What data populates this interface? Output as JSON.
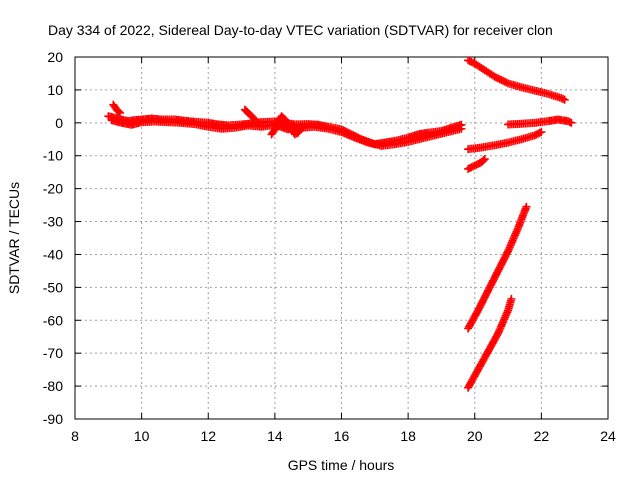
{
  "chart_data": {
    "type": "scatter",
    "title": "Day 334 of 2022, Sidereal Day-to-day VTEC variation (SDTVAR) for receiver clon",
    "xlabel": "GPS time / hours",
    "ylabel": "SDTVAR / TECUs",
    "xlim": [
      8,
      24
    ],
    "ylim": [
      -90,
      20
    ],
    "xticks": [
      8,
      10,
      12,
      14,
      16,
      18,
      20,
      22,
      24
    ],
    "yticks": [
      20,
      10,
      0,
      -10,
      -20,
      -30,
      -40,
      -50,
      -60,
      -70,
      -80,
      -90
    ],
    "grid": true,
    "marker": "plus",
    "color": "#ff0000",
    "series": [
      {
        "name": "track-main",
        "points": [
          [
            9.0,
            2.0
          ],
          [
            9.2,
            1.5
          ],
          [
            9.4,
            1.0
          ],
          [
            9.6,
            0.5
          ],
          [
            9.8,
            0.8
          ],
          [
            10.0,
            1.0
          ],
          [
            10.3,
            1.3
          ],
          [
            10.6,
            1.0
          ],
          [
            11.0,
            1.0
          ],
          [
            11.3,
            0.6
          ],
          [
            11.6,
            0.3
          ],
          [
            12.0,
            0.0
          ],
          [
            12.3,
            -0.5
          ],
          [
            12.6,
            -0.8
          ],
          [
            13.0,
            -0.5
          ],
          [
            13.3,
            -0.2
          ],
          [
            13.6,
            0.2
          ],
          [
            14.0,
            0.4
          ],
          [
            14.3,
            0.0
          ],
          [
            14.6,
            -0.5
          ],
          [
            15.0,
            -0.4
          ],
          [
            15.3,
            -0.6
          ],
          [
            15.6,
            -1.2
          ],
          [
            16.0,
            -2.0
          ],
          [
            16.3,
            -3.5
          ],
          [
            16.6,
            -5.0
          ],
          [
            17.0,
            -6.5
          ],
          [
            17.3,
            -6.0
          ],
          [
            17.6,
            -5.5
          ],
          [
            18.0,
            -4.5
          ],
          [
            18.3,
            -3.5
          ],
          [
            18.6,
            -3.0
          ],
          [
            19.0,
            -2.5
          ],
          [
            19.3,
            -1.5
          ],
          [
            19.6,
            -0.6
          ]
        ]
      },
      {
        "name": "track-main-lower",
        "points": [
          [
            9.1,
            0.8
          ],
          [
            9.4,
            0.0
          ],
          [
            9.7,
            -0.6
          ],
          [
            10.0,
            0.2
          ],
          [
            10.4,
            0.4
          ],
          [
            10.8,
            0.2
          ],
          [
            11.2,
            0.0
          ],
          [
            11.6,
            -0.4
          ],
          [
            12.0,
            -1.2
          ],
          [
            12.4,
            -1.8
          ],
          [
            12.8,
            -1.5
          ],
          [
            13.2,
            -0.8
          ],
          [
            13.6,
            -1.2
          ],
          [
            14.0,
            -0.6
          ],
          [
            14.4,
            -2.0
          ],
          [
            14.8,
            -1.5
          ],
          [
            15.2,
            -1.2
          ],
          [
            15.6,
            -1.8
          ],
          [
            16.0,
            -2.8
          ],
          [
            16.4,
            -4.5
          ],
          [
            16.8,
            -6.0
          ],
          [
            17.2,
            -7.0
          ],
          [
            17.6,
            -6.5
          ],
          [
            18.0,
            -5.8
          ],
          [
            18.4,
            -4.8
          ],
          [
            18.8,
            -3.8
          ],
          [
            19.2,
            -2.8
          ],
          [
            19.6,
            -1.8
          ]
        ]
      },
      {
        "name": "spike-9h",
        "points": [
          [
            9.15,
            5.5
          ],
          [
            9.25,
            4.0
          ],
          [
            9.35,
            3.0
          ]
        ]
      },
      {
        "name": "spike-13h",
        "points": [
          [
            13.1,
            4.0
          ],
          [
            13.2,
            3.0
          ],
          [
            13.3,
            2.0
          ],
          [
            13.4,
            1.0
          ]
        ]
      },
      {
        "name": "wiggle-14h",
        "points": [
          [
            13.9,
            -3.5
          ],
          [
            14.0,
            -2.0
          ],
          [
            14.1,
            0.5
          ],
          [
            14.2,
            2.0
          ],
          [
            14.3,
            1.0
          ],
          [
            14.4,
            -0.5
          ],
          [
            14.5,
            -2.0
          ],
          [
            14.6,
            -3.5
          ],
          [
            14.7,
            -3.0
          ],
          [
            14.8,
            -1.5
          ]
        ]
      },
      {
        "name": "upper-right",
        "points": [
          [
            19.8,
            19.0
          ],
          [
            20.0,
            18.0
          ],
          [
            20.3,
            16.0
          ],
          [
            20.6,
            14.0
          ],
          [
            21.0,
            12.0
          ],
          [
            21.4,
            10.8
          ],
          [
            21.8,
            9.8
          ],
          [
            22.2,
            8.8
          ],
          [
            22.6,
            7.5
          ],
          [
            22.7,
            7.0
          ]
        ]
      },
      {
        "name": "mid-right-flat",
        "points": [
          [
            21.0,
            -0.5
          ],
          [
            21.4,
            -0.3
          ],
          [
            21.8,
            0.0
          ],
          [
            22.2,
            0.5
          ],
          [
            22.5,
            1.0
          ],
          [
            22.8,
            0.5
          ],
          [
            22.9,
            0.0
          ]
        ]
      },
      {
        "name": "mid-right-rising",
        "points": [
          [
            19.8,
            -8.0
          ],
          [
            20.2,
            -7.5
          ],
          [
            20.6,
            -6.8
          ],
          [
            21.0,
            -6.0
          ],
          [
            21.4,
            -5.0
          ],
          [
            21.8,
            -3.8
          ],
          [
            22.0,
            -2.8
          ]
        ]
      },
      {
        "name": "short-segment",
        "points": [
          [
            19.8,
            -14.0
          ],
          [
            20.0,
            -13.0
          ],
          [
            20.2,
            -12.0
          ],
          [
            20.3,
            -11.0
          ]
        ]
      },
      {
        "name": "steep-upper",
        "points": [
          [
            19.8,
            -62.5
          ],
          [
            20.1,
            -57.0
          ],
          [
            20.4,
            -51.0
          ],
          [
            20.7,
            -45.0
          ],
          [
            21.0,
            -39.0
          ],
          [
            21.3,
            -32.0
          ],
          [
            21.55,
            -25.5
          ]
        ]
      },
      {
        "name": "steep-lower",
        "points": [
          [
            19.8,
            -80.5
          ],
          [
            20.1,
            -75.0
          ],
          [
            20.4,
            -69.5
          ],
          [
            20.7,
            -64.0
          ],
          [
            21.0,
            -57.0
          ],
          [
            21.1,
            -53.5
          ]
        ]
      }
    ]
  }
}
